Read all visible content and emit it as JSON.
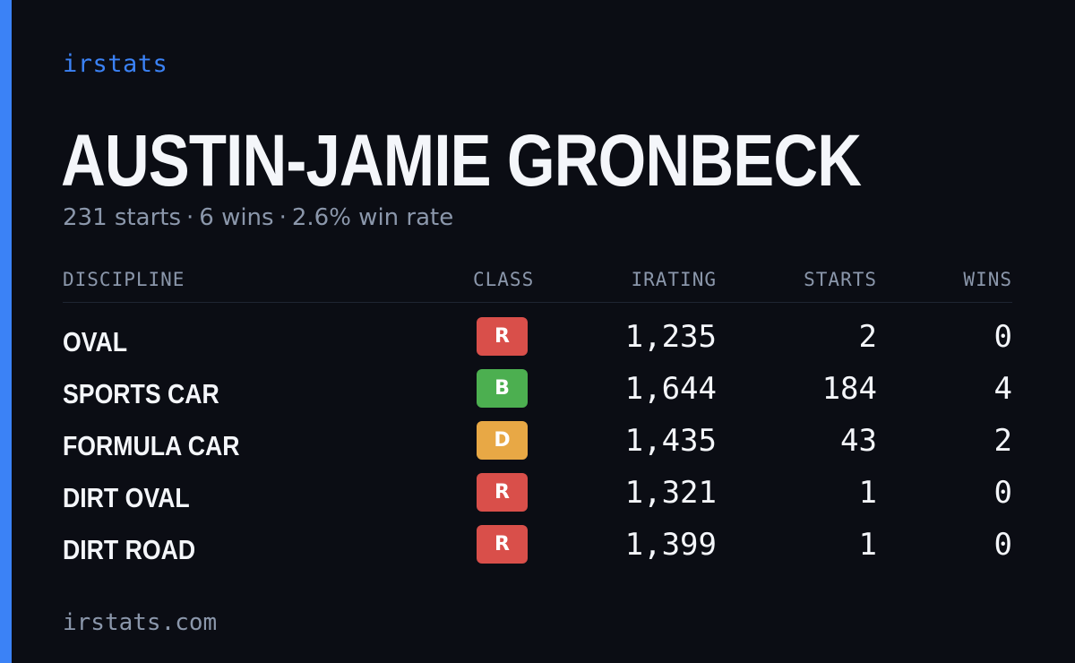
{
  "brand": "irstats",
  "driver": {
    "name": "AUSTIN-JAMIE GRONBECK"
  },
  "summary": {
    "starts": "231 starts",
    "wins": "6 wins",
    "win_rate": "2.6% win rate",
    "separator": "·"
  },
  "table": {
    "headers": {
      "discipline": "DISCIPLINE",
      "class": "CLASS",
      "irating": "IRATING",
      "starts": "STARTS",
      "wins": "WINS"
    },
    "rows": [
      {
        "discipline": "OVAL",
        "class": "R",
        "class_color": "#d94f4a",
        "irating": "1,235",
        "starts": "2",
        "wins": "0"
      },
      {
        "discipline": "SPORTS CAR",
        "class": "B",
        "class_color": "#4caf50",
        "irating": "1,644",
        "starts": "184",
        "wins": "4"
      },
      {
        "discipline": "FORMULA CAR",
        "class": "D",
        "class_color": "#e8a845",
        "irating": "1,435",
        "starts": "43",
        "wins": "2"
      },
      {
        "discipline": "DIRT OVAL",
        "class": "R",
        "class_color": "#d94f4a",
        "irating": "1,321",
        "starts": "1",
        "wins": "0"
      },
      {
        "discipline": "DIRT ROAD",
        "class": "R",
        "class_color": "#d94f4a",
        "irating": "1,399",
        "starts": "1",
        "wins": "0"
      }
    ]
  },
  "footer": "irstats.com",
  "colors": {
    "accent": "#3b82f6",
    "background": "#0b0d14",
    "muted_text": "#8b97ab",
    "primary_text": "#f4f6fa"
  }
}
